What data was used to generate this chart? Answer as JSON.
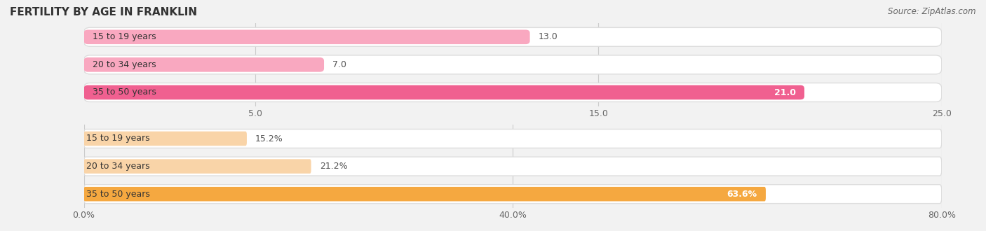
{
  "title": "FERTILITY BY AGE IN FRANKLIN",
  "source": "Source: ZipAtlas.com",
  "group1": {
    "categories": [
      "15 to 19 years",
      "20 to 34 years",
      "35 to 50 years"
    ],
    "values": [
      13.0,
      7.0,
      21.0
    ],
    "xmax": 25.0,
    "xticks": [
      5.0,
      15.0,
      25.0
    ],
    "bar_color_light": "#f9a8c0",
    "bar_color_dark": "#f06090"
  },
  "group2": {
    "categories": [
      "15 to 19 years",
      "20 to 34 years",
      "35 to 50 years"
    ],
    "values": [
      15.2,
      21.2,
      63.6
    ],
    "xmax": 80.0,
    "xticks": [
      0.0,
      40.0,
      80.0
    ],
    "bar_color_light": "#f9d4a8",
    "bar_color_dark": "#f5a840"
  },
  "bg_color": "#f2f2f2",
  "bar_height": 0.52,
  "title_fontsize": 11,
  "tick_fontsize": 9,
  "label_fontsize": 9,
  "cat_fontsize": 9
}
